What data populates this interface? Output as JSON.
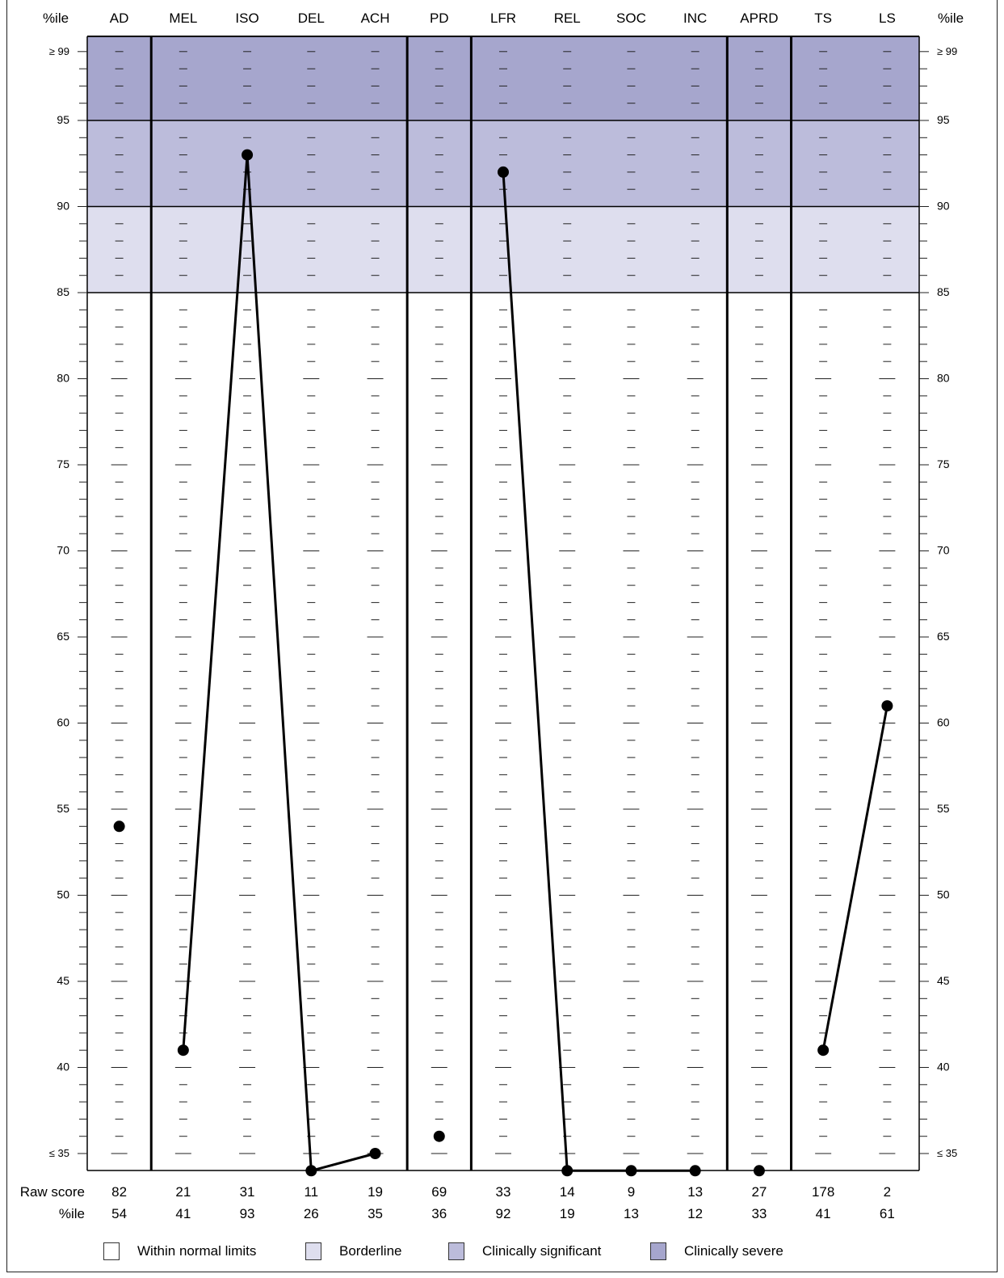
{
  "chart_data": {
    "type": "line",
    "axis_label_left": "%ile",
    "axis_label_right": "%ile",
    "scales": [
      "AD",
      "MEL",
      "ISO",
      "DEL",
      "ACH",
      "PD",
      "LFR",
      "REL",
      "SOC",
      "INC",
      "APRD",
      "TS",
      "LS"
    ],
    "y_ticks": [
      "≤ 35",
      "40",
      "45",
      "50",
      "55",
      "60",
      "65",
      "70",
      "75",
      "80",
      "85",
      "90",
      "95",
      "≥ 99"
    ],
    "ylim": [
      34,
      99
    ],
    "series": [
      {
        "plotted_percentiles": [
          54,
          41,
          93,
          34,
          35,
          36,
          92,
          34,
          34,
          34,
          34,
          41,
          61
        ]
      }
    ],
    "connected_segments": [
      [
        1,
        2
      ],
      [
        2,
        3
      ],
      [
        3,
        4
      ],
      [
        6,
        7
      ],
      [
        7,
        8
      ],
      [
        8,
        9
      ],
      [
        11,
        12
      ]
    ],
    "group_dividers_after": [
      "AD",
      "ACH",
      "PD",
      "INC",
      "APRD"
    ],
    "bands": [
      {
        "from": 85,
        "to": 90,
        "color": "#dedeee",
        "label": "Borderline"
      },
      {
        "from": 90,
        "to": 95,
        "color": "#bcbcdb",
        "label": "Clinically significant"
      },
      {
        "from": 95,
        "to": 99,
        "color": "#a6a6cd",
        "label": "Clinically severe"
      }
    ],
    "raw_score_label": "Raw score",
    "percentile_label": "%ile",
    "raw_scores": [
      "82",
      "21",
      "31",
      "11",
      "19",
      "69",
      "33",
      "14",
      "9",
      "13",
      "27",
      "178",
      "2"
    ],
    "percentiles": [
      "54",
      "41",
      "93",
      "26",
      "35",
      "36",
      "92",
      "19",
      "13",
      "12",
      "33",
      "41",
      "61"
    ],
    "legend": [
      {
        "label": "Within normal limits",
        "color": "#ffffff"
      },
      {
        "label": "Borderline",
        "color": "#dedeee"
      },
      {
        "label": "Clinically significant",
        "color": "#bcbcdb"
      },
      {
        "label": "Clinically severe",
        "color": "#a6a6cd"
      }
    ]
  }
}
